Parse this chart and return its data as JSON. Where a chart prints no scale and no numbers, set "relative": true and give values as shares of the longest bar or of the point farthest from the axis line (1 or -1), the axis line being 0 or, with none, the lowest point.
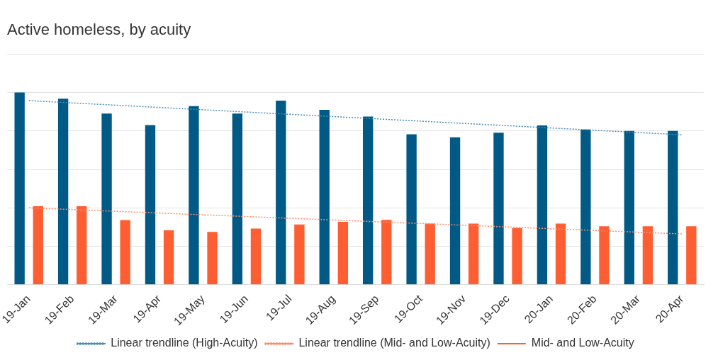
{
  "chart_data": {
    "type": "bar",
    "title": "Active homeless, by acuity",
    "relative": true,
    "grid": "y",
    "legend": "bottom",
    "categories": [
      "19-Jan",
      "19-Feb",
      "19-Mar",
      "19-Apr",
      "19-May",
      "19-Jun",
      "19-Jul",
      "19-Aug",
      "19-Sep",
      "19-Oct",
      "19-Nov",
      "19-Dec",
      "20-Jan",
      "20-Feb",
      "20-Mar",
      "20-Apr"
    ],
    "series": [
      {
        "color": "#005a85",
        "values": [
          1.0,
          0.968,
          0.891,
          0.831,
          0.929,
          0.891,
          0.958,
          0.91,
          0.875,
          0.783,
          0.767,
          0.791,
          0.829,
          0.808,
          0.8,
          0.8
        ]
      },
      {
        "name": "Mid- and Low-Acuity",
        "color": "#ff5e33",
        "values": [
          0.408,
          0.408,
          0.336,
          0.283,
          0.275,
          0.292,
          0.313,
          0.327,
          0.337,
          0.318,
          0.318,
          0.295,
          0.318,
          0.304,
          0.304,
          0.304
        ]
      },
      {
        "name": "Linear trendline (High-Acuity)",
        "type": "line",
        "line_style": "dotted",
        "marker": "none",
        "color": "#4a8db5",
        "x": [
          "19-Jan",
          "20-Apr"
        ],
        "values": [
          0.958,
          0.78
        ]
      },
      {
        "name": "Linear trendline (Mid- and Low-Acuity)",
        "type": "line",
        "line_style": "dotted",
        "marker": "none",
        "color": "#ff8a6a",
        "x": [
          "19-Jan",
          "20-Apr"
        ],
        "values": [
          0.4,
          0.264
        ]
      }
    ]
  }
}
